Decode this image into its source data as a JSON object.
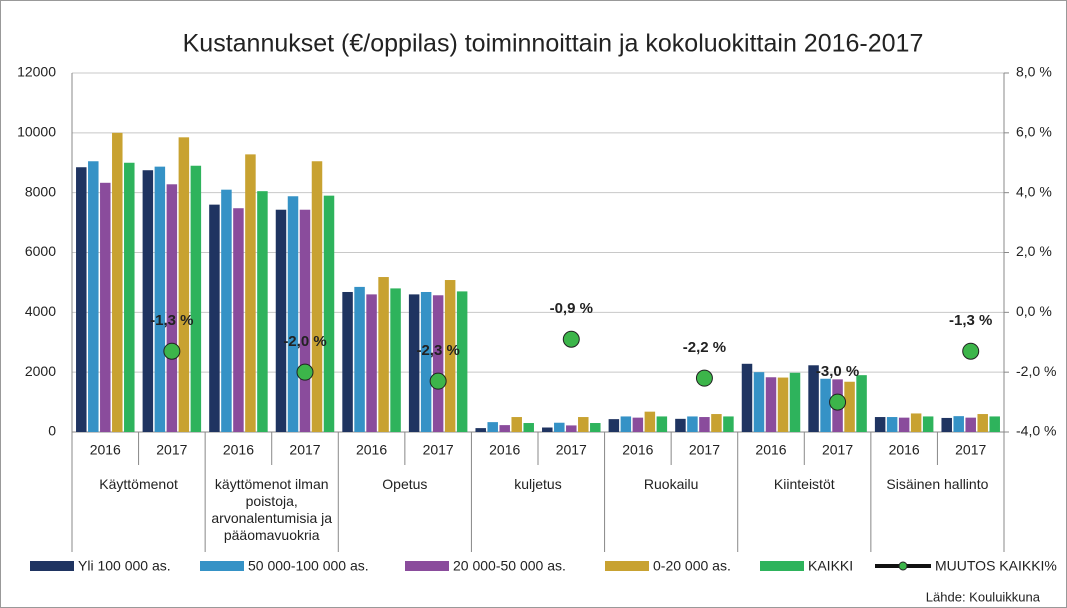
{
  "chart_data": {
    "type": "bar",
    "title": "Kustannukset (€/oppilas) toiminnoittain ja kokoluokittain  2016-2017",
    "source": "Lähde: Kouluikkuna",
    "categories": [
      "2016",
      "2017",
      "2016",
      "2017",
      "2016",
      "2017",
      "2016",
      "2017",
      "2016",
      "2017",
      "2016",
      "2017",
      "2016",
      "2017"
    ],
    "group_labels": [
      "Käyttömenot",
      "käyttömenot ilman poistoja, arvonalentumisia ja pääomavuokria",
      "Opetus",
      "kuljetus",
      "Ruokailu",
      "Kiinteistöt",
      "Sisäinen hallinto"
    ],
    "series": [
      {
        "name": "Yli 100 000 as.",
        "color": "#1f3461",
        "values": [
          8850,
          8750,
          7600,
          7430,
          4680,
          4600,
          130,
          150,
          430,
          440,
          2280,
          2230,
          500,
          470
        ]
      },
      {
        "name": "50 000-100 000 as.",
        "color": "#3592c6",
        "values": [
          9050,
          8870,
          8100,
          7880,
          4850,
          4680,
          330,
          310,
          520,
          520,
          2000,
          1780,
          500,
          530
        ]
      },
      {
        "name": "20 000-50 000 as.",
        "color": "#8a4c9c",
        "values": [
          8330,
          8280,
          7480,
          7430,
          4600,
          4570,
          230,
          220,
          480,
          500,
          1830,
          1760,
          480,
          480
        ]
      },
      {
        "name": "0-20 000 as.",
        "color": "#c8a231",
        "values": [
          10000,
          9850,
          9280,
          9050,
          5180,
          5080,
          500,
          500,
          680,
          600,
          1820,
          1680,
          620,
          600
        ]
      },
      {
        "name": "KAIKKI",
        "color": "#2eb35c",
        "values": [
          9000,
          8900,
          8050,
          7900,
          4800,
          4700,
          300,
          300,
          520,
          520,
          1980,
          1900,
          520,
          520
        ]
      },
      {
        "name": "MUUTOS KAIKKI%",
        "color": "#3cb54a",
        "line_color": "#111111",
        "axis": "y2",
        "values": [
          null,
          -1.3,
          null,
          -2.0,
          null,
          -2.3,
          null,
          -0.9,
          null,
          -2.2,
          null,
          -3.0,
          null,
          -1.3
        ],
        "value_labels": [
          null,
          "-1,3 %",
          null,
          "-2,0 %",
          null,
          "-2,3 %",
          null,
          "-0,9 %",
          null,
          "-2,2 %",
          null,
          "-3,0 %",
          null,
          "-1,3 %"
        ]
      }
    ],
    "ylim": [
      0,
      12000
    ],
    "yticks": [
      0,
      2000,
      4000,
      6000,
      8000,
      10000,
      12000
    ],
    "y2lim": [
      -4,
      8
    ],
    "y2ticks": [
      {
        "value": -4,
        "label": "-4,0 %"
      },
      {
        "value": -2,
        "label": "-2,0 %"
      },
      {
        "value": 0,
        "label": "0,0 %"
      },
      {
        "value": 2,
        "label": "2,0 %"
      },
      {
        "value": 4,
        "label": "4,0 %"
      },
      {
        "value": 6,
        "label": "6,0 %"
      },
      {
        "value": 8,
        "label": "8,0 %"
      }
    ],
    "grid": true,
    "legend": "bottom"
  }
}
